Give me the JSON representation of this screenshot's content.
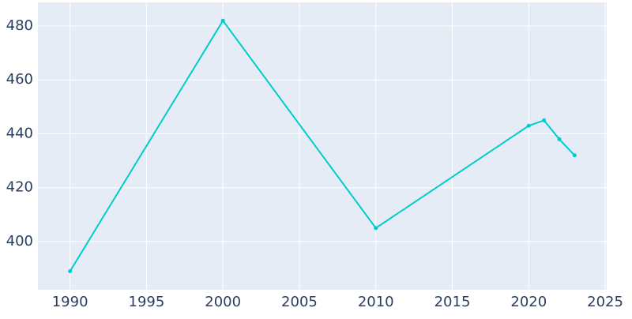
{
  "chart_data": {
    "type": "line",
    "x": [
      1990,
      2000,
      2010,
      2020,
      2021,
      2022,
      2023
    ],
    "series": [
      {
        "color": "#00cccc",
        "values": [
          389,
          482,
          405,
          443,
          445,
          438,
          432
        ]
      }
    ],
    "xlim": [
      1987.9,
      2025.1
    ],
    "xticks": [
      1990,
      1995,
      2000,
      2005,
      2010,
      2015,
      2020,
      2025
    ],
    "ylim": [
      382.1,
      488.8
    ],
    "yticks": [
      400,
      420,
      440,
      460,
      480
    ],
    "grid": true
  }
}
